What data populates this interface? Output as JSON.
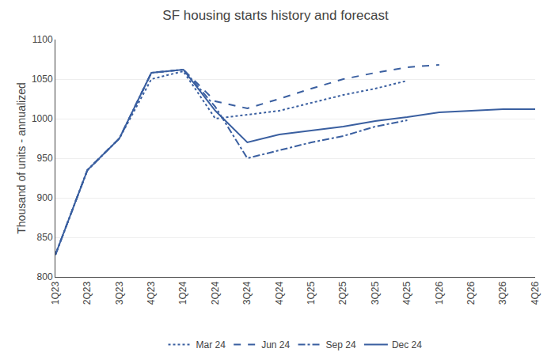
{
  "chart_data": {
    "type": "line",
    "title": "SF housing starts history and forecast",
    "ylabel": "Thousand of units - annualized",
    "categories": [
      "1Q23",
      "2Q23",
      "3Q23",
      "4Q23",
      "1Q24",
      "2Q24",
      "3Q24",
      "4Q24",
      "1Q25",
      "2Q25",
      "3Q25",
      "4Q25",
      "1Q26",
      "2Q26",
      "3Q26",
      "4Q26"
    ],
    "series": [
      {
        "name": "Mar 24",
        "color": "#3a5fa0",
        "line_style": "dotted",
        "values": [
          828,
          935,
          975,
          1050,
          1060,
          1000,
          1005,
          1010,
          1020,
          1030,
          1038,
          1048,
          null,
          null,
          null,
          null
        ]
      },
      {
        "name": "Jun 24",
        "color": "#3a5fa0",
        "line_style": "dashed",
        "values": [
          828,
          935,
          975,
          1058,
          1062,
          1022,
          1013,
          1025,
          1038,
          1050,
          1058,
          1065,
          1068,
          null,
          null,
          null
        ]
      },
      {
        "name": "Sep 24",
        "color": "#3a5fa0",
        "line_style": "dashdot",
        "values": [
          828,
          935,
          975,
          1058,
          1062,
          1015,
          950,
          960,
          970,
          978,
          990,
          998,
          null,
          null,
          null,
          null
        ]
      },
      {
        "name": "Dec 24",
        "color": "#3a5fa0",
        "line_style": "solid",
        "values": [
          828,
          935,
          975,
          1058,
          1062,
          1010,
          970,
          980,
          985,
          990,
          997,
          1002,
          1008,
          1010,
          1012,
          1012
        ]
      }
    ],
    "ylim": [
      800,
      1100
    ],
    "yticks": [
      800,
      850,
      900,
      950,
      1000,
      1050,
      1100
    ],
    "grid": true,
    "legend": "bottom"
  }
}
